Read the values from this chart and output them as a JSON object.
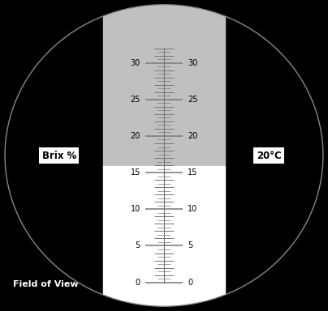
{
  "fig_width": 4.04,
  "fig_height": 3.84,
  "dpi": 100,
  "bg_color": "#000000",
  "gray_color": "#c0c0c0",
  "white_color": "#ffffff",
  "tick_color": "#777777",
  "text_color": "#000000",
  "white_text_color": "#ffffff",
  "label_box_color": "#ffffff",
  "scale_min": 0,
  "scale_max": 32,
  "major_ticks": [
    0,
    5,
    10,
    15,
    20,
    25,
    30
  ],
  "left_label": "Brix %",
  "right_label": "20°C",
  "footer_label": "Field of View",
  "font_size_labels": 8.5,
  "font_size_scale": 7.0,
  "font_size_footer": 8.0
}
